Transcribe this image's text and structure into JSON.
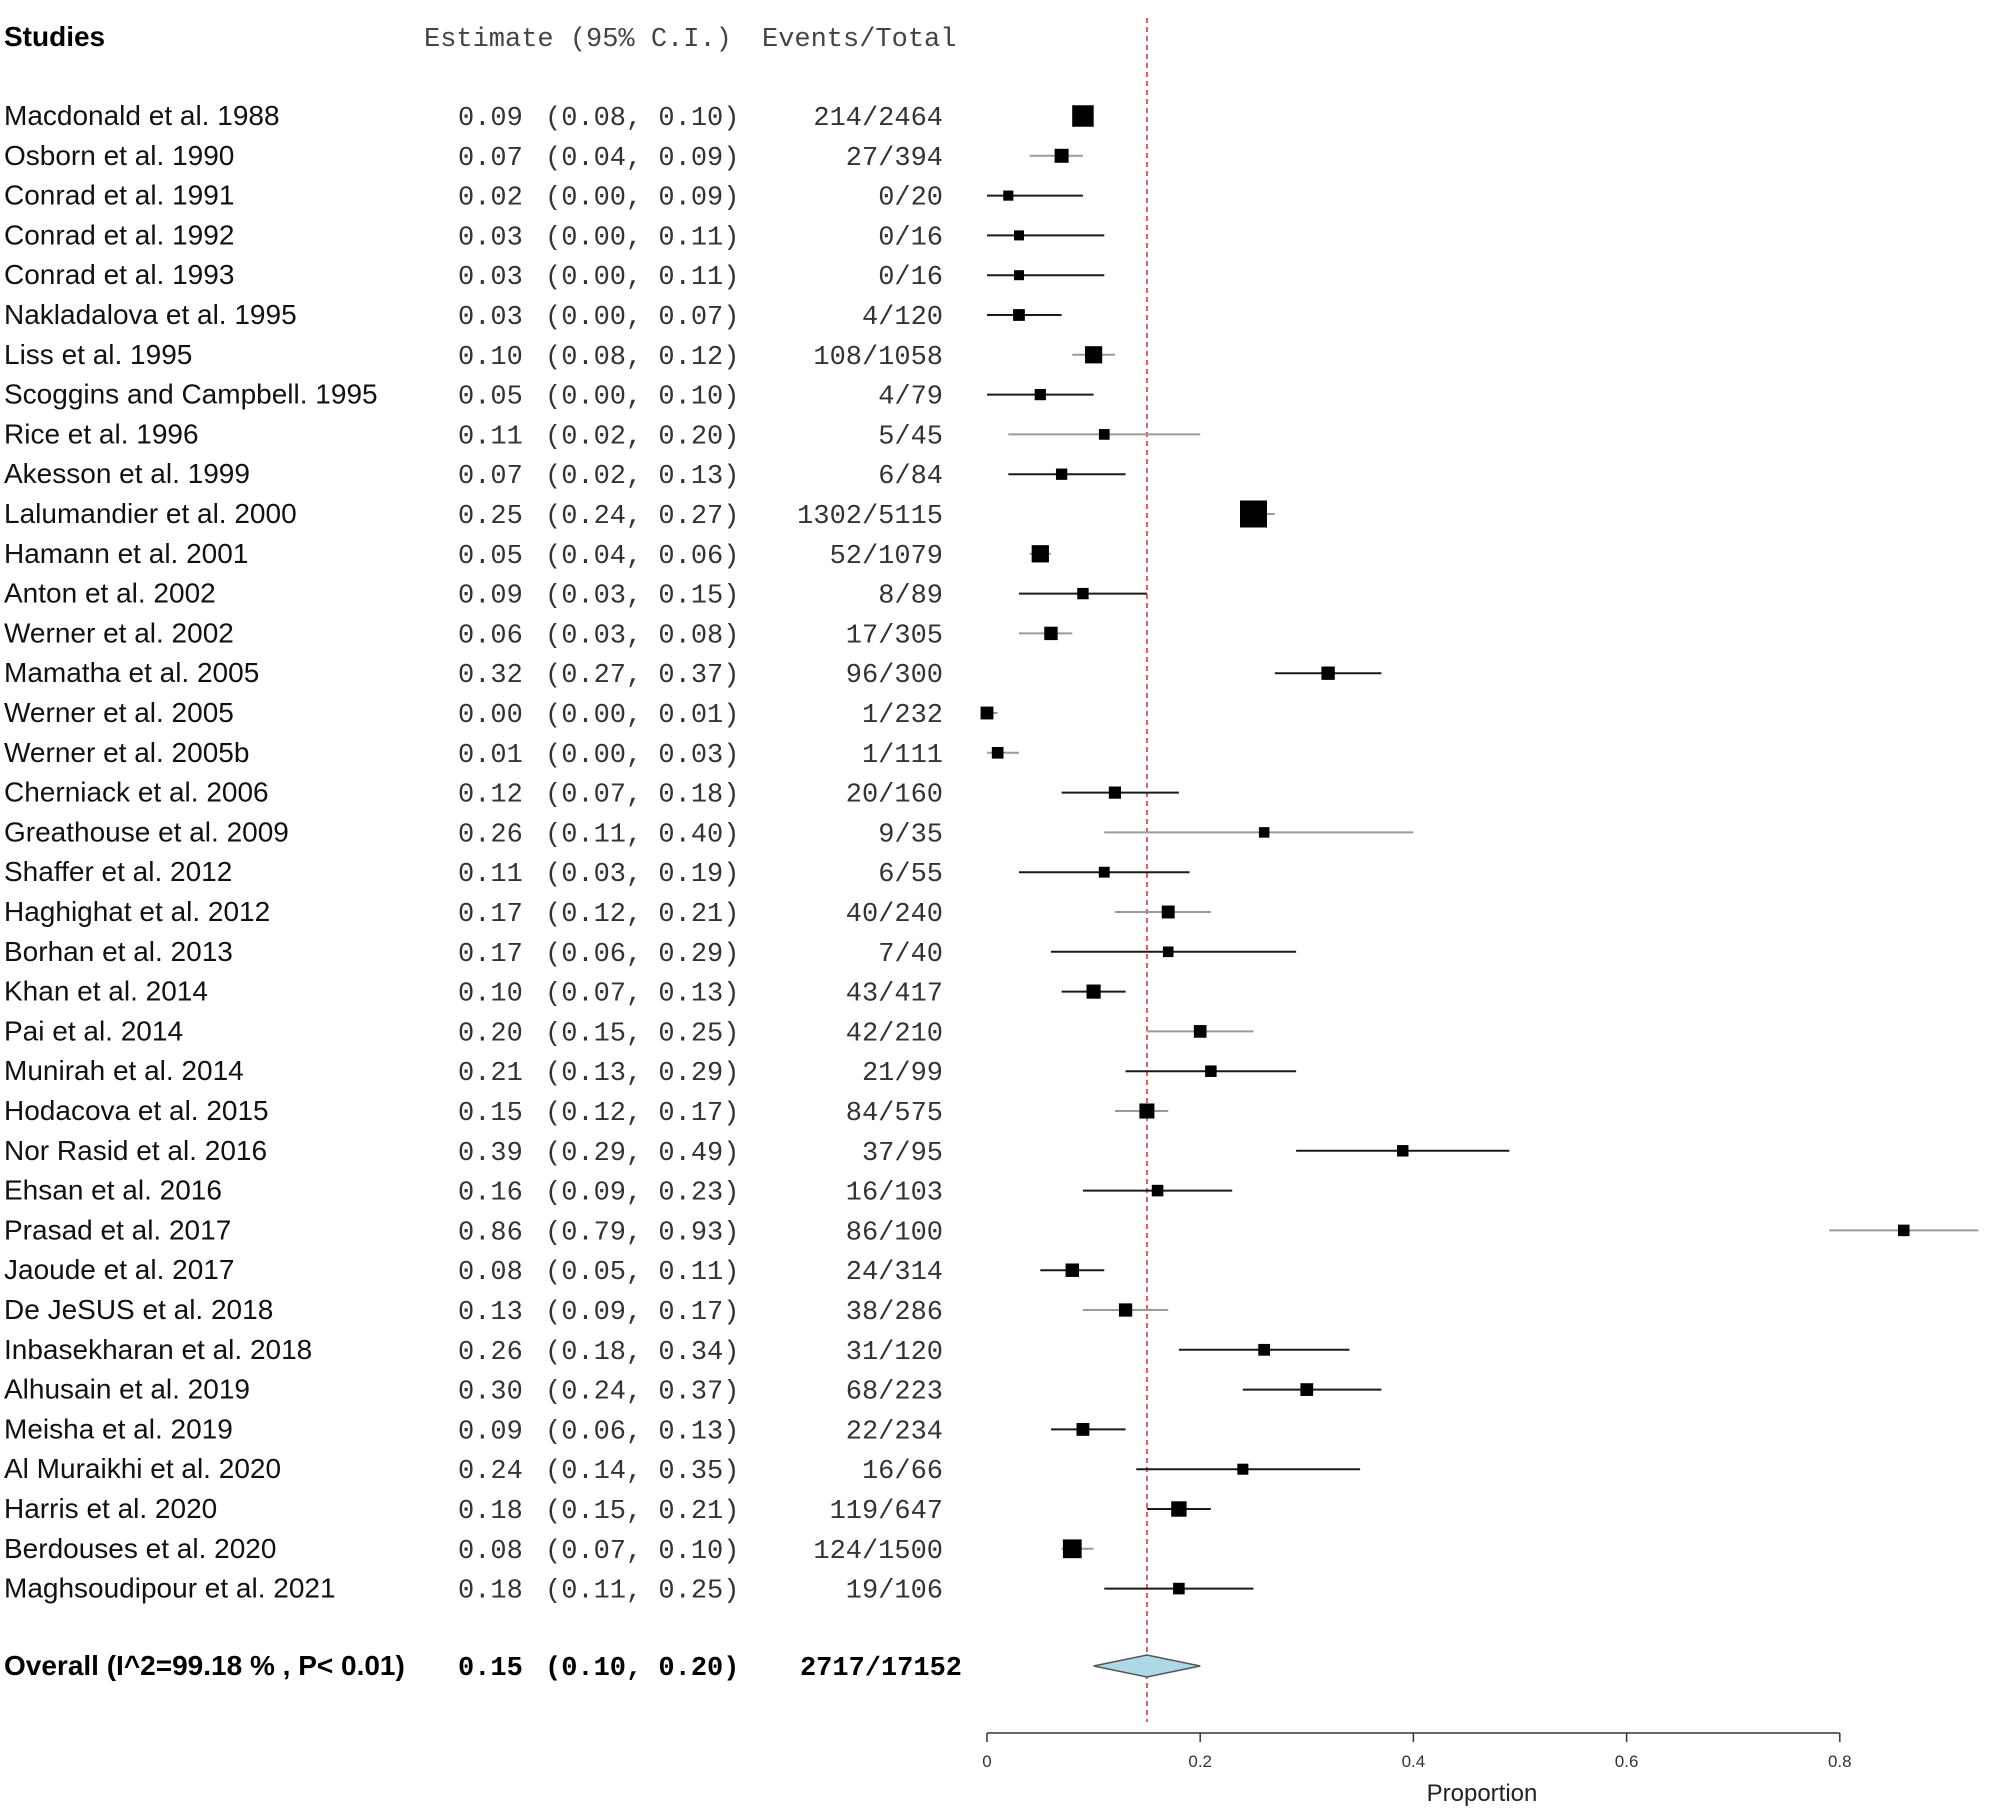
{
  "header": {
    "studies": "Studies",
    "estimate": "Estimate (95% C.I.)",
    "events": "Events/Total"
  },
  "chart_data": {
    "type": "forest",
    "xlabel": "Proportion",
    "xlim": [
      0,
      0.93
    ],
    "xticks": [
      0,
      0.2,
      0.4,
      0.6,
      0.8
    ],
    "xtick_labels": [
      "0",
      "0.2",
      "0.4",
      "0.6",
      "0.8"
    ],
    "reference_line": 0.15,
    "reference_color": "#e05a5a",
    "overall_color": "#add8e6",
    "studies": [
      {
        "name": "Macdonald et al. 1988",
        "est": 0.09,
        "lo": 0.08,
        "hi": 0.1,
        "est_text": "0.09",
        "ci_text": "(0.08, 0.10)",
        "events": "214/2464",
        "size": 2464
      },
      {
        "name": "Osborn et al. 1990",
        "est": 0.07,
        "lo": 0.04,
        "hi": 0.09,
        "est_text": "0.07",
        "ci_text": "(0.04, 0.09)",
        "events": "27/394",
        "size": 394
      },
      {
        "name": "Conrad et al. 1991",
        "est": 0.02,
        "lo": 0.0,
        "hi": 0.09,
        "est_text": "0.02",
        "ci_text": "(0.00, 0.09)",
        "events": "0/20",
        "size": 20
      },
      {
        "name": "Conrad et al. 1992",
        "est": 0.03,
        "lo": 0.0,
        "hi": 0.11,
        "est_text": "0.03",
        "ci_text": "(0.00, 0.11)",
        "events": "0/16",
        "size": 16
      },
      {
        "name": "Conrad et al. 1993",
        "est": 0.03,
        "lo": 0.0,
        "hi": 0.11,
        "est_text": "0.03",
        "ci_text": "(0.00, 0.11)",
        "events": "0/16",
        "size": 16
      },
      {
        "name": "Nakladalova et al. 1995",
        "est": 0.03,
        "lo": 0.0,
        "hi": 0.07,
        "est_text": "0.03",
        "ci_text": "(0.00, 0.07)",
        "events": "4/120",
        "size": 120
      },
      {
        "name": "Liss et al. 1995",
        "est": 0.1,
        "lo": 0.08,
        "hi": 0.12,
        "est_text": "0.10",
        "ci_text": "(0.08, 0.12)",
        "events": "108/1058",
        "size": 1058
      },
      {
        "name": "Scoggins and Campbell. 1995",
        "est": 0.05,
        "lo": 0.0,
        "hi": 0.1,
        "est_text": "0.05",
        "ci_text": "(0.00, 0.10)",
        "events": "4/79",
        "size": 79
      },
      {
        "name": "Rice et al. 1996",
        "est": 0.11,
        "lo": 0.02,
        "hi": 0.2,
        "est_text": "0.11",
        "ci_text": "(0.02, 0.20)",
        "events": "5/45",
        "size": 45
      },
      {
        "name": "Akesson et al. 1999",
        "est": 0.07,
        "lo": 0.02,
        "hi": 0.13,
        "est_text": "0.07",
        "ci_text": "(0.02, 0.13)",
        "events": "6/84",
        "size": 84
      },
      {
        "name": "Lalumandier et al. 2000",
        "est": 0.25,
        "lo": 0.24,
        "hi": 0.27,
        "est_text": "0.25",
        "ci_text": "(0.24, 0.27)",
        "events": "1302/5115",
        "size": 5115
      },
      {
        "name": "Hamann et al. 2001",
        "est": 0.05,
        "lo": 0.04,
        "hi": 0.06,
        "est_text": "0.05",
        "ci_text": "(0.04, 0.06)",
        "events": "52/1079",
        "size": 1079
      },
      {
        "name": "Anton et al. 2002",
        "est": 0.09,
        "lo": 0.03,
        "hi": 0.15,
        "est_text": "0.09",
        "ci_text": "(0.03, 0.15)",
        "events": "8/89",
        "size": 89
      },
      {
        "name": "Werner et al. 2002",
        "est": 0.06,
        "lo": 0.03,
        "hi": 0.08,
        "est_text": "0.06",
        "ci_text": "(0.03, 0.08)",
        "events": "17/305",
        "size": 305
      },
      {
        "name": "Mamatha et al. 2005",
        "est": 0.32,
        "lo": 0.27,
        "hi": 0.37,
        "est_text": "0.32",
        "ci_text": "(0.27, 0.37)",
        "events": "96/300",
        "size": 300
      },
      {
        "name": "Werner et al. 2005",
        "est": 0.0,
        "lo": 0.0,
        "hi": 0.01,
        "est_text": "0.00",
        "ci_text": "(0.00, 0.01)",
        "events": "1/232",
        "size": 232
      },
      {
        "name": "Werner et al. 2005b",
        "est": 0.01,
        "lo": 0.0,
        "hi": 0.03,
        "est_text": "0.01",
        "ci_text": "(0.00, 0.03)",
        "events": "1/111",
        "size": 111
      },
      {
        "name": "Cherniack et al. 2006",
        "est": 0.12,
        "lo": 0.07,
        "hi": 0.18,
        "est_text": "0.12",
        "ci_text": "(0.07, 0.18)",
        "events": "20/160",
        "size": 160
      },
      {
        "name": "Greathouse et al. 2009",
        "est": 0.26,
        "lo": 0.11,
        "hi": 0.4,
        "est_text": "0.26",
        "ci_text": "(0.11, 0.40)",
        "events": "9/35",
        "size": 35
      },
      {
        "name": "Shaffer et al. 2012",
        "est": 0.11,
        "lo": 0.03,
        "hi": 0.19,
        "est_text": "0.11",
        "ci_text": "(0.03, 0.19)",
        "events": "6/55",
        "size": 55
      },
      {
        "name": "Haghighat et al. 2012",
        "est": 0.17,
        "lo": 0.12,
        "hi": 0.21,
        "est_text": "0.17",
        "ci_text": "(0.12, 0.21)",
        "events": "40/240",
        "size": 240
      },
      {
        "name": "Borhan et al. 2013",
        "est": 0.17,
        "lo": 0.06,
        "hi": 0.29,
        "est_text": "0.17",
        "ci_text": "(0.06, 0.29)",
        "events": "7/40",
        "size": 40
      },
      {
        "name": "Khan et al. 2014",
        "est": 0.1,
        "lo": 0.07,
        "hi": 0.13,
        "est_text": "0.10",
        "ci_text": "(0.07, 0.13)",
        "events": "43/417",
        "size": 417
      },
      {
        "name": "Pai et al. 2014",
        "est": 0.2,
        "lo": 0.15,
        "hi": 0.25,
        "est_text": "0.20",
        "ci_text": "(0.15, 0.25)",
        "events": "42/210",
        "size": 210
      },
      {
        "name": "Munirah et al. 2014",
        "est": 0.21,
        "lo": 0.13,
        "hi": 0.29,
        "est_text": "0.21",
        "ci_text": "(0.13, 0.29)",
        "events": "21/99",
        "size": 99
      },
      {
        "name": "Hodacova et al. 2015",
        "est": 0.15,
        "lo": 0.12,
        "hi": 0.17,
        "est_text": "0.15",
        "ci_text": "(0.12, 0.17)",
        "events": "84/575",
        "size": 575
      },
      {
        "name": "Nor Rasid et al. 2016",
        "est": 0.39,
        "lo": 0.29,
        "hi": 0.49,
        "est_text": "0.39",
        "ci_text": "(0.29, 0.49)",
        "events": "37/95",
        "size": 95
      },
      {
        "name": "Ehsan et al. 2016",
        "est": 0.16,
        "lo": 0.09,
        "hi": 0.23,
        "est_text": "0.16",
        "ci_text": "(0.09, 0.23)",
        "events": "16/103",
        "size": 103
      },
      {
        "name": "Prasad et al. 2017",
        "est": 0.86,
        "lo": 0.79,
        "hi": 0.93,
        "est_text": "0.86",
        "ci_text": "(0.79, 0.93)",
        "events": "86/100",
        "size": 100
      },
      {
        "name": "Jaoude et al. 2017",
        "est": 0.08,
        "lo": 0.05,
        "hi": 0.11,
        "est_text": "0.08",
        "ci_text": "(0.05, 0.11)",
        "events": "24/314",
        "size": 314
      },
      {
        "name": "De JeSUS et al. 2018",
        "est": 0.13,
        "lo": 0.09,
        "hi": 0.17,
        "est_text": "0.13",
        "ci_text": "(0.09, 0.17)",
        "events": "38/286",
        "size": 286
      },
      {
        "name": "Inbasekharan et al. 2018",
        "est": 0.26,
        "lo": 0.18,
        "hi": 0.34,
        "est_text": "0.26",
        "ci_text": "(0.18, 0.34)",
        "events": "31/120",
        "size": 120
      },
      {
        "name": "Alhusain et al. 2019",
        "est": 0.3,
        "lo": 0.24,
        "hi": 0.37,
        "est_text": "0.30",
        "ci_text": "(0.24, 0.37)",
        "events": "68/223",
        "size": 223
      },
      {
        "name": "Meisha et al. 2019",
        "est": 0.09,
        "lo": 0.06,
        "hi": 0.13,
        "est_text": "0.09",
        "ci_text": "(0.06, 0.13)",
        "events": "22/234",
        "size": 234
      },
      {
        "name": "Al Muraikhi et al. 2020",
        "est": 0.24,
        "lo": 0.14,
        "hi": 0.35,
        "est_text": "0.24",
        "ci_text": "(0.14, 0.35)",
        "events": "16/66",
        "size": 66
      },
      {
        "name": "Harris et al. 2020",
        "est": 0.18,
        "lo": 0.15,
        "hi": 0.21,
        "est_text": "0.18",
        "ci_text": "(0.15, 0.21)",
        "events": "119/647",
        "size": 647
      },
      {
        "name": "Berdouses et al. 2020",
        "est": 0.08,
        "lo": 0.07,
        "hi": 0.1,
        "est_text": "0.08",
        "ci_text": "(0.07, 0.10)",
        "events": "124/1500",
        "size": 1500
      },
      {
        "name": "Maghsoudipour et al. 2021",
        "est": 0.18,
        "lo": 0.11,
        "hi": 0.25,
        "est_text": "0.18",
        "ci_text": "(0.11, 0.25)",
        "events": "19/106",
        "size": 106
      }
    ],
    "overall": {
      "name": "Overall (I^2=99.18 % , P< 0.01)",
      "est": 0.15,
      "lo": 0.1,
      "hi": 0.2,
      "est_text": "0.15",
      "ci_text": "(0.10, 0.20)",
      "events": "2717/17152"
    }
  }
}
